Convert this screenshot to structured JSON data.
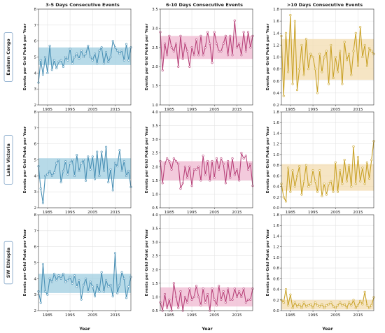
{
  "figure": {
    "column_titles": [
      "3-5 Days Consecutive Events",
      "6-10 Days Consecutive Events",
      ">10 Days Consecutive Events"
    ],
    "row_labels": [
      "Eastern Congo",
      "Lake Victoria",
      "SW Ethiopia"
    ],
    "y_axis_label": "Events per Grid Point per Year",
    "x_axis_label": "Year",
    "x_ticks": [
      1985,
      1995,
      2005,
      2015
    ],
    "colors": [
      "#4a90b5",
      "#b8437a",
      "#c9a227"
    ],
    "band_colors": [
      "#9fcde0",
      "#efb8d0",
      "#f3dcb0"
    ],
    "marker_fill": "#ffffff"
  },
  "chart_data": [
    {
      "type": "line",
      "row": "Eastern Congo",
      "column": "3-5 Days Consecutive Events",
      "xlim": [
        1981,
        2022
      ],
      "ylim": [
        2,
        8
      ],
      "yticks": [
        2,
        3,
        4,
        5,
        6,
        7,
        8
      ],
      "band": [
        4.5,
        5.6
      ],
      "x": [
        1981,
        1982,
        1983,
        1984,
        1985,
        1986,
        1987,
        1988,
        1989,
        1990,
        1991,
        1992,
        1993,
        1994,
        1995,
        1996,
        1997,
        1998,
        1999,
        2000,
        2001,
        2002,
        2003,
        2004,
        2005,
        2006,
        2007,
        2008,
        2009,
        2010,
        2011,
        2012,
        2013,
        2014,
        2015,
        2016,
        2017,
        2018,
        2019,
        2020,
        2021,
        2022
      ],
      "y": [
        3.4,
        4.8,
        3.9,
        5.0,
        4.0,
        5.7,
        4.2,
        4.8,
        4.3,
        4.7,
        4.8,
        4.4,
        5.0,
        4.8,
        5.5,
        4.6,
        5.0,
        5.2,
        4.9,
        5.4,
        5.0,
        5.2,
        5.7,
        5.0,
        4.8,
        5.2,
        4.6,
        5.4,
        5.6,
        4.6,
        5.3,
        4.7,
        5.0,
        6.0,
        5.6,
        5.4,
        5.2,
        5.4,
        4.8,
        5.8,
        4.8,
        5.6
      ]
    },
    {
      "type": "line",
      "row": "Eastern Congo",
      "column": "6-10 Days Consecutive Events",
      "xlim": [
        1981,
        2022
      ],
      "ylim": [
        1.0,
        3.5
      ],
      "yticks": [
        1.0,
        1.5,
        2.0,
        2.5,
        3.0,
        3.5
      ],
      "band": [
        2.2,
        2.8
      ],
      "x": [
        1981,
        1982,
        1983,
        1984,
        1985,
        1986,
        1987,
        1988,
        1989,
        1990,
        1991,
        1992,
        1993,
        1994,
        1995,
        1996,
        1997,
        1998,
        1999,
        2000,
        2001,
        2002,
        2003,
        2004,
        2005,
        2006,
        2007,
        2008,
        2009,
        2010,
        2011,
        2012,
        2013,
        2014,
        2015,
        2016,
        2017,
        2018,
        2019,
        2020,
        2021,
        2022
      ],
      "y": [
        2.9,
        1.9,
        2.6,
        2.3,
        2.8,
        2.5,
        2.4,
        2.6,
        2.0,
        2.8,
        2.2,
        2.6,
        2.4,
        2.0,
        2.5,
        2.3,
        2.7,
        2.3,
        2.8,
        2.3,
        2.5,
        2.9,
        2.6,
        2.1,
        2.9,
        2.6,
        2.4,
        2.4,
        2.6,
        2.8,
        2.3,
        2.8,
        2.3,
        3.2,
        2.5,
        2.6,
        2.3,
        2.9,
        2.4,
        2.9,
        2.5,
        2.8
      ]
    },
    {
      "type": "line",
      "row": "Eastern Congo",
      "column": ">10 Days Consecutive Events",
      "xlim": [
        1981,
        2022
      ],
      "ylim": [
        0.2,
        1.8
      ],
      "yticks": [
        0.2,
        0.4,
        0.6,
        0.8,
        1.0,
        1.2,
        1.4,
        1.6,
        1.8
      ],
      "band": [
        0.62,
        1.3
      ],
      "x": [
        1981,
        1982,
        1983,
        1984,
        1985,
        1986,
        1987,
        1988,
        1989,
        1990,
        1991,
        1992,
        1993,
        1994,
        1995,
        1996,
        1997,
        1998,
        1999,
        2000,
        2001,
        2002,
        2003,
        2004,
        2005,
        2006,
        2007,
        2008,
        2009,
        2010,
        2011,
        2012,
        2013,
        2014,
        2015,
        2016,
        2017,
        2018,
        2019,
        2020,
        2021,
        2022
      ],
      "y": [
        1.35,
        0.35,
        1.4,
        0.75,
        1.7,
        0.55,
        1.6,
        0.45,
        0.8,
        1.2,
        0.7,
        1.3,
        0.8,
        1.05,
        1.0,
        0.8,
        0.4,
        1.05,
        0.75,
        1.0,
        1.1,
        0.55,
        1.2,
        0.65,
        1.0,
        0.75,
        1.1,
        0.55,
        1.25,
        0.95,
        1.05,
        0.7,
        1.1,
        1.4,
        0.85,
        1.5,
        1.0,
        1.2,
        0.85,
        1.15,
        1.1,
        1.05
      ]
    },
    {
      "type": "line",
      "row": "Lake Victoria",
      "column": "3-5 Days Consecutive Events",
      "xlim": [
        1981,
        2022
      ],
      "ylim": [
        2,
        8
      ],
      "yticks": [
        2,
        3,
        4,
        5,
        6,
        7,
        8
      ],
      "band": [
        3.8,
        5.1
      ],
      "x": [
        1981,
        1982,
        1983,
        1984,
        1985,
        1986,
        1987,
        1988,
        1989,
        1990,
        1991,
        1992,
        1993,
        1994,
        1995,
        1996,
        1997,
        1998,
        1999,
        2000,
        2001,
        2002,
        2003,
        2004,
        2005,
        2006,
        2007,
        2008,
        2009,
        2010,
        2011,
        2012,
        2013,
        2014,
        2015,
        2016,
        2017,
        2018,
        2019,
        2020,
        2021,
        2022
      ],
      "y": [
        4.6,
        3.2,
        2.3,
        4.0,
        4.1,
        4.3,
        4.0,
        4.2,
        4.8,
        5.0,
        3.6,
        4.3,
        4.9,
        4.1,
        4.8,
        5.0,
        4.0,
        5.3,
        4.3,
        4.8,
        5.0,
        3.7,
        5.2,
        4.4,
        5.2,
        3.8,
        5.5,
        4.0,
        5.5,
        4.3,
        5.8,
        3.6,
        4.4,
        3.1,
        4.8,
        4.6,
        5.6,
        4.3,
        4.9,
        4.0,
        4.3,
        3.3
      ]
    },
    {
      "type": "line",
      "row": "Lake Victoria",
      "column": "6-10 Days Consecutive Events",
      "xlim": [
        1981,
        2022
      ],
      "ylim": [
        0.5,
        4.0
      ],
      "yticks": [
        0.5,
        1.0,
        1.5,
        2.0,
        2.5,
        3.0,
        3.5,
        4.0
      ],
      "band": [
        1.5,
        2.2
      ],
      "x": [
        1981,
        1982,
        1983,
        1984,
        1985,
        1986,
        1987,
        1988,
        1989,
        1990,
        1991,
        1992,
        1993,
        1994,
        1995,
        1996,
        1997,
        1998,
        1999,
        2000,
        2001,
        2002,
        2003,
        2004,
        2005,
        2006,
        2007,
        2008,
        2009,
        2010,
        2011,
        2012,
        2013,
        2014,
        2015,
        2016,
        2017,
        2018,
        2019,
        2020,
        2021,
        2022
      ],
      "y": [
        2.2,
        1.4,
        2.1,
        2.3,
        2.2,
        1.9,
        2.3,
        2.2,
        2.1,
        1.2,
        1.4,
        2.0,
        1.6,
        2.0,
        1.3,
        1.9,
        1.9,
        2.0,
        1.5,
        2.4,
        1.7,
        2.2,
        1.5,
        2.2,
        1.6,
        2.3,
        1.9,
        2.3,
        2.1,
        1.4,
        2.2,
        1.6,
        2.3,
        1.7,
        1.9,
        1.5,
        2.5,
        2.3,
        2.4,
        1.9,
        2.1,
        1.3
      ]
    },
    {
      "type": "line",
      "row": "Lake Victoria",
      "column": ">10 Days Consecutive Events",
      "xlim": [
        1981,
        2022
      ],
      "ylim": [
        0.0,
        1.8
      ],
      "yticks": [
        0.0,
        0.2,
        0.4,
        0.6,
        0.8,
        1.0,
        1.2,
        1.4,
        1.6,
        1.8
      ],
      "band": [
        0.32,
        0.82
      ],
      "x": [
        1981,
        1982,
        1983,
        1984,
        1985,
        1986,
        1987,
        1988,
        1989,
        1990,
        1991,
        1992,
        1993,
        1994,
        1995,
        1996,
        1997,
        1998,
        1999,
        2000,
        2001,
        2002,
        2003,
        2004,
        2005,
        2006,
        2007,
        2008,
        2009,
        2010,
        2011,
        2012,
        2013,
        2014,
        2015,
        2016,
        2017,
        2018,
        2019,
        2020,
        2021,
        2022
      ],
      "y": [
        0.45,
        0.2,
        0.12,
        0.75,
        0.3,
        0.7,
        0.4,
        0.6,
        0.78,
        0.25,
        0.5,
        0.8,
        0.4,
        0.45,
        0.7,
        0.5,
        0.3,
        0.7,
        0.22,
        0.45,
        0.25,
        0.45,
        0.5,
        0.3,
        0.85,
        0.3,
        0.7,
        0.45,
        0.9,
        0.5,
        0.8,
        0.4,
        1.15,
        0.45,
        0.95,
        0.5,
        0.75,
        0.45,
        0.85,
        0.55,
        0.9,
        1.25
      ]
    },
    {
      "type": "line",
      "row": "SW Ethiopia",
      "column": "3-5 Days Consecutive Events",
      "xlim": [
        1981,
        2022
      ],
      "ylim": [
        2,
        8
      ],
      "yticks": [
        2,
        3,
        4,
        5,
        6,
        7,
        8
      ],
      "band": [
        3.1,
        4.3
      ],
      "x": [
        1981,
        1982,
        1983,
        1984,
        1985,
        1986,
        1987,
        1988,
        1989,
        1990,
        1991,
        1992,
        1993,
        1994,
        1995,
        1996,
        1997,
        1998,
        1999,
        2000,
        2001,
        2002,
        2003,
        2004,
        2005,
        2006,
        2007,
        2008,
        2009,
        2010,
        2011,
        2012,
        2013,
        2014,
        2015,
        2016,
        2017,
        2018,
        2019,
        2020,
        2021,
        2022
      ],
      "y": [
        3.2,
        2.5,
        4.9,
        3.2,
        3.0,
        4.0,
        3.8,
        4.3,
        3.9,
        4.2,
        4.0,
        4.3,
        3.8,
        3.9,
        4.1,
        3.7,
        4.2,
        3.5,
        3.9,
        2.7,
        3.6,
        4.0,
        3.2,
        3.8,
        3.5,
        2.9,
        3.6,
        3.2,
        4.4,
        3.2,
        3.9,
        3.5,
        3.6,
        2.9,
        5.6,
        3.1,
        3.6,
        4.4,
        4.0,
        2.8,
        3.5,
        4.1
      ]
    },
    {
      "type": "line",
      "row": "SW Ethiopia",
      "column": "6-10 Days Consecutive Events",
      "xlim": [
        1981,
        2022
      ],
      "ylim": [
        0.5,
        4.0
      ],
      "yticks": [
        0.5,
        1.0,
        1.5,
        2.0,
        2.5,
        3.0,
        3.5,
        4.0
      ],
      "band": [
        0.65,
        1.35
      ],
      "x": [
        1981,
        1982,
        1983,
        1984,
        1985,
        1986,
        1987,
        1988,
        1989,
        1990,
        1991,
        1992,
        1993,
        1994,
        1995,
        1996,
        1997,
        1998,
        1999,
        2000,
        2001,
        2002,
        2003,
        2004,
        2005,
        2006,
        2007,
        2008,
        2009,
        2010,
        2011,
        2012,
        2013,
        2014,
        2015,
        2016,
        2017,
        2018,
        2019,
        2020,
        2021,
        2022
      ],
      "y": [
        0.8,
        0.5,
        1.1,
        0.6,
        0.9,
        0.3,
        1.5,
        1.0,
        0.6,
        1.2,
        0.4,
        1.0,
        0.8,
        1.3,
        0.9,
        1.0,
        1.4,
        1.0,
        0.7,
        1.3,
        0.8,
        1.1,
        0.5,
        1.3,
        0.9,
        0.7,
        1.4,
        0.9,
        1.2,
        0.8,
        1.3,
        0.9,
        0.9,
        1.3,
        1.0,
        1.2,
        1.0,
        1.3,
        0.8,
        0.9,
        0.9,
        1.3
      ]
    },
    {
      "type": "line",
      "row": "SW Ethiopia",
      "column": ">10 Days Consecutive Events",
      "xlim": [
        1981,
        2022
      ],
      "ylim": [
        0.0,
        1.8
      ],
      "yticks": [
        0.0,
        0.2,
        0.4,
        0.6,
        0.8,
        1.0,
        1.2,
        1.4,
        1.6,
        1.8
      ],
      "band": [
        0.02,
        0.2
      ],
      "x": [
        1981,
        1982,
        1983,
        1984,
        1985,
        1986,
        1987,
        1988,
        1989,
        1990,
        1991,
        1992,
        1993,
        1994,
        1995,
        1996,
        1997,
        1998,
        1999,
        2000,
        2001,
        2002,
        2003,
        2004,
        2005,
        2006,
        2007,
        2008,
        2009,
        2010,
        2011,
        2012,
        2013,
        2014,
        2015,
        2016,
        2017,
        2018,
        2019,
        2020,
        2021,
        2022
      ],
      "y": [
        0.2,
        0.15,
        0.4,
        0.1,
        0.3,
        0.05,
        0.15,
        0.08,
        0.12,
        0.05,
        0.15,
        0.08,
        0.1,
        0.12,
        0.05,
        0.15,
        0.1,
        0.08,
        0.12,
        0.05,
        0.1,
        0.12,
        0.15,
        0.08,
        0.05,
        0.1,
        0.15,
        0.1,
        0.12,
        0.05,
        0.15,
        0.1,
        0.2,
        0.05,
        0.1,
        0.18,
        0.12,
        0.35,
        0.1,
        0.05,
        0.1,
        0.25
      ]
    }
  ]
}
